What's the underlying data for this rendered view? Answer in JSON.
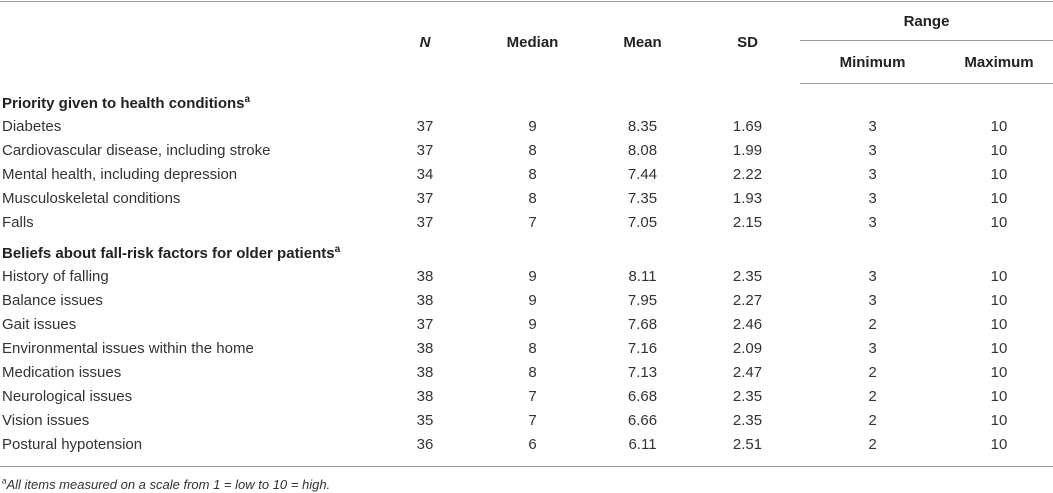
{
  "table": {
    "headers": {
      "n": "N",
      "median": "Median",
      "mean": "Mean",
      "sd": "SD",
      "range": "Range",
      "minimum": "Minimum",
      "maximum": "Maximum"
    },
    "sections": [
      {
        "title": "Priority given to health conditions",
        "marker": "a",
        "rows": [
          [
            "Diabetes",
            37,
            9,
            8.35,
            1.69,
            3,
            10
          ],
          [
            "Cardiovascular disease, including stroke",
            37,
            8,
            8.08,
            1.99,
            3,
            10
          ],
          [
            "Mental health, including depression",
            34,
            8,
            7.44,
            2.22,
            3,
            10
          ],
          [
            "Musculoskeletal conditions",
            37,
            8,
            7.35,
            1.93,
            3,
            10
          ],
          [
            "Falls",
            37,
            7,
            7.05,
            2.15,
            3,
            10
          ]
        ]
      },
      {
        "title": "Beliefs about fall-risk factors for older patients",
        "marker": "a",
        "rows": [
          [
            "History of falling",
            38,
            9,
            8.11,
            2.35,
            3,
            10
          ],
          [
            "Balance issues",
            38,
            9,
            7.95,
            2.27,
            3,
            10
          ],
          [
            "Gait issues",
            37,
            9,
            7.68,
            2.46,
            2,
            10
          ],
          [
            "Environmental issues within the home",
            38,
            8,
            7.16,
            2.09,
            3,
            10
          ],
          [
            "Medication issues",
            38,
            8,
            7.13,
            2.47,
            2,
            10
          ],
          [
            "Neurological issues",
            38,
            7,
            6.68,
            2.35,
            2,
            10
          ],
          [
            "Vision issues",
            35,
            7,
            6.66,
            2.35,
            2,
            10
          ],
          [
            "Postural hypotension",
            36,
            6,
            6.11,
            2.51,
            2,
            10
          ]
        ]
      }
    ],
    "footnote": {
      "marker": "a",
      "text": "All items measured on a scale from 1 = low to 10 = high."
    }
  }
}
